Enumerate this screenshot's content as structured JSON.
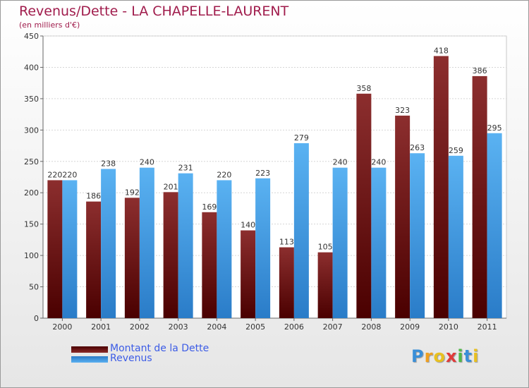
{
  "header": {
    "title": "Revenus/Dette - LA CHAPELLE-LAURENT",
    "subtitle": "(en milliers d'€)"
  },
  "chart_data": {
    "type": "bar",
    "categories": [
      "2000",
      "2001",
      "2002",
      "2003",
      "2004",
      "2005",
      "2006",
      "2007",
      "2008",
      "2009",
      "2010",
      "2011"
    ],
    "series": [
      {
        "name": "Montant de la Dette",
        "values": [
          220,
          186,
          192,
          201,
          169,
          140,
          113,
          105,
          358,
          323,
          418,
          386
        ],
        "color": "#7a1b1b"
      },
      {
        "name": "Revenus",
        "values": [
          220,
          238,
          240,
          231,
          220,
          223,
          279,
          240,
          240,
          263,
          259,
          295
        ],
        "color": "#4aa3e8"
      }
    ],
    "title": "Revenus/Dette - LA CHAPELLE-LAURENT",
    "subtitle": "(en milliers d'€)",
    "ylim": [
      0,
      450
    ],
    "yticks": [
      0,
      50,
      100,
      150,
      200,
      250,
      300,
      350,
      400,
      450
    ],
    "grid": true,
    "legend_position": "bottom-left"
  },
  "logo": {
    "letters": [
      {
        "char": "P",
        "color": "#3a8fd8"
      },
      {
        "char": "r",
        "color": "#f0a020"
      },
      {
        "char": "o",
        "color": "#e8c020"
      },
      {
        "char": "x",
        "color": "#e03a3a"
      },
      {
        "char": "i",
        "color": "#50b848"
      },
      {
        "char": "t",
        "color": "#3a8fd8"
      },
      {
        "char": "i",
        "color": "#e8c020"
      }
    ]
  }
}
